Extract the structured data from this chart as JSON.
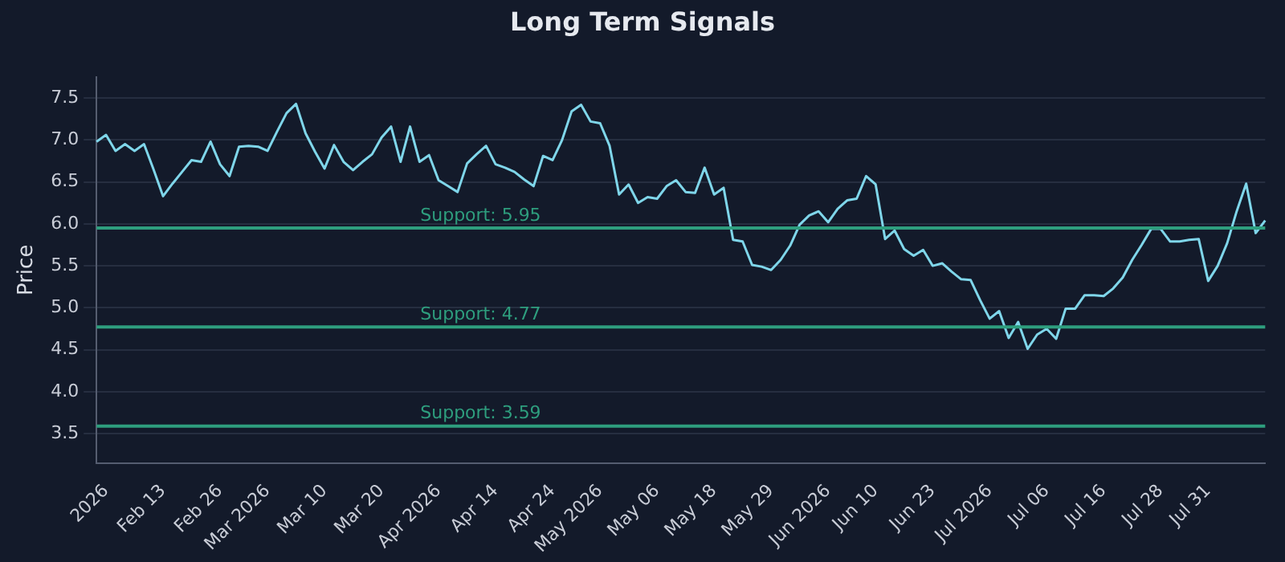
{
  "chart_data": {
    "type": "line",
    "title": "Long Term Signals",
    "ylabel": "Price",
    "categories": [
      null,
      "2026",
      null,
      null,
      null,
      null,
      null,
      "Feb 13",
      null,
      null,
      null,
      null,
      null,
      "Feb 26",
      null,
      null,
      null,
      null,
      "Mar 2026",
      null,
      null,
      null,
      null,
      null,
      "Mar 10",
      null,
      null,
      null,
      null,
      null,
      "Mar 20",
      null,
      null,
      null,
      null,
      null,
      "Apr 2026",
      null,
      null,
      null,
      null,
      null,
      "Apr 14",
      null,
      null,
      null,
      null,
      null,
      "Apr 24",
      null,
      null,
      null,
      null,
      "May 2026",
      null,
      null,
      null,
      null,
      null,
      "May 06",
      null,
      null,
      null,
      null,
      null,
      "May 18",
      null,
      null,
      null,
      null,
      null,
      "May 29",
      null,
      null,
      null,
      null,
      null,
      "Jun 2026",
      null,
      null,
      null,
      null,
      "Jun 10",
      null,
      null,
      null,
      null,
      null,
      "Jun 23",
      null,
      null,
      null,
      null,
      null,
      "Jul 2026",
      null,
      null,
      null,
      null,
      null,
      "Jul 06",
      null,
      null,
      null,
      null,
      null,
      "Jul 16",
      null,
      null,
      null,
      null,
      null,
      "Jul 28",
      null,
      null,
      null,
      null,
      "Jul 31",
      null,
      null,
      null,
      null,
      null,
      null
    ],
    "series": [
      {
        "color": "#7fd6ea",
        "values": [
          6.98,
          7.06,
          6.87,
          6.95,
          6.87,
          6.95,
          6.65,
          6.33,
          6.48,
          6.62,
          6.76,
          6.74,
          6.98,
          6.71,
          6.57,
          6.92,
          6.93,
          6.92,
          6.87,
          7.1,
          7.32,
          7.43,
          7.08,
          6.86,
          6.66,
          6.94,
          6.74,
          6.64,
          6.74,
          6.83,
          7.03,
          7.16,
          6.74,
          7.16,
          6.74,
          6.82,
          6.52,
          6.45,
          6.38,
          6.72,
          6.83,
          6.93,
          6.71,
          6.67,
          6.62,
          6.53,
          6.45,
          6.81,
          6.76,
          7.0,
          7.34,
          7.42,
          7.22,
          7.2,
          6.93,
          6.35,
          6.47,
          6.25,
          6.32,
          6.3,
          6.45,
          6.52,
          6.38,
          6.37,
          6.67,
          6.35,
          6.43,
          5.81,
          5.79,
          5.51,
          5.49,
          5.45,
          5.57,
          5.74,
          5.99,
          6.1,
          6.15,
          6.02,
          6.18,
          6.28,
          6.3,
          6.57,
          6.47,
          5.82,
          5.92,
          5.7,
          5.62,
          5.69,
          5.5,
          5.53,
          5.43,
          5.34,
          5.33,
          5.09,
          4.87,
          4.96,
          4.64,
          4.83,
          4.51,
          4.68,
          4.75,
          4.63,
          4.99,
          4.99,
          5.15,
          5.15,
          5.14,
          5.23,
          5.36,
          5.57,
          5.75,
          5.94,
          5.94,
          5.79,
          5.79,
          5.81,
          5.82,
          5.32,
          5.5,
          5.77,
          6.15,
          6.48,
          5.89,
          6.04
        ]
      }
    ],
    "ylim": [
      3.15,
      7.75
    ],
    "yticks": [
      3.5,
      {
        "value": 4,
        "label": "4.0"
      },
      4.5,
      {
        "value": 5,
        "label": "5.0"
      },
      5.5,
      {
        "value": 6,
        "label": "6.0"
      },
      6.5,
      {
        "value": 7,
        "label": "7.0"
      },
      7.5
    ],
    "grid": "y",
    "legend": false,
    "marker": "none",
    "line_style": "solid",
    "ref_lines": [
      {
        "axis": "y",
        "value": 5.95,
        "label": "Support: 5.95",
        "color": "#2e9e7e"
      },
      {
        "axis": "y",
        "value": 4.77,
        "label": "Support: 4.77",
        "color": "#2e9e7e"
      },
      {
        "axis": "y",
        "value": 3.59,
        "label": "Support: 3.59",
        "color": "#2e9e7e"
      }
    ]
  }
}
